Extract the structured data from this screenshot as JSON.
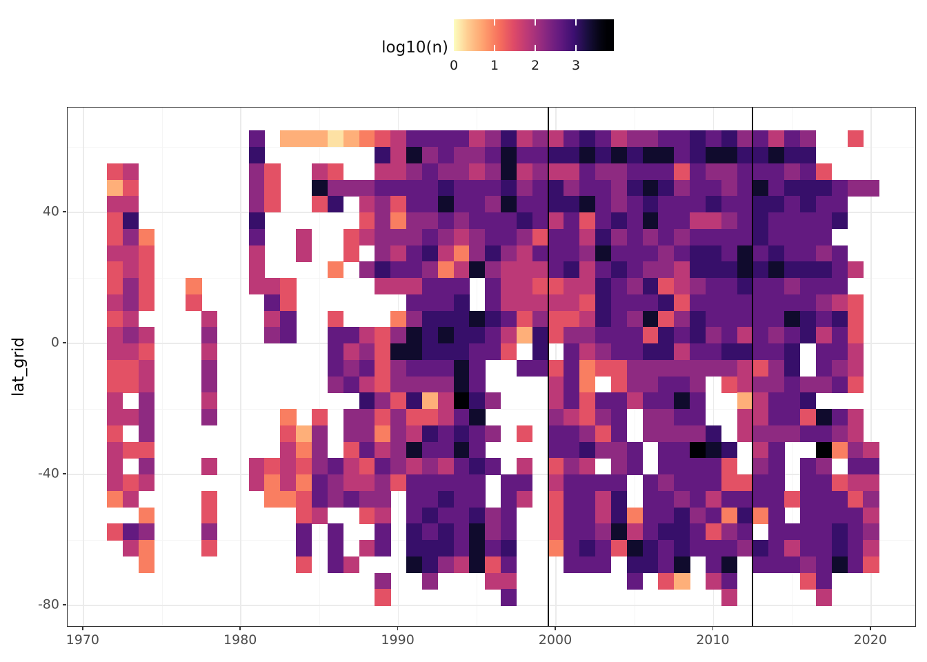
{
  "figure": {
    "background": "#ffffff"
  },
  "legend": {
    "title": "log10(n)",
    "tick_labels": [
      "0",
      "1",
      "2",
      "3"
    ],
    "tick_values": [
      0,
      1,
      2,
      3
    ],
    "bar_value_max": 3.93
  },
  "axes": {
    "y_title": "lat_grid",
    "x_title": "",
    "x_tick_labels": [
      "1970",
      "1980",
      "1990",
      "2000",
      "2010",
      "2020"
    ],
    "x_tick_values": [
      1970,
      1980,
      1990,
      2000,
      2010,
      2020
    ],
    "y_tick_labels": [
      "40",
      "0",
      "-40",
      "-80"
    ],
    "y_tick_values": [
      40,
      0,
      -40,
      -80
    ]
  },
  "chart_data": {
    "type": "heatmap",
    "title": "",
    "xlabel": "",
    "ylabel": "lat_grid",
    "fill_label": "log10(n)",
    "x_domain": [
      1969.0,
      2022.9
    ],
    "y_domain": [
      -86.7,
      72.0
    ],
    "x_ticks": [
      1970,
      1980,
      1990,
      2000,
      2010,
      2020
    ],
    "x_minor": [
      1975,
      1985,
      1995,
      2005,
      2015
    ],
    "y_ticks": [
      40,
      0,
      -40,
      -80
    ],
    "y_minor": [
      60,
      20,
      -20,
      -60
    ],
    "grid_on": true,
    "legend_position": "top",
    "colormap": "magma reversed (viridis option magma, direction = -1)",
    "magma_stops": [
      "#000004",
      "#140E36",
      "#3B0F70",
      "#641A80",
      "#8C2981",
      "#B73779",
      "#DE4968",
      "#F7705C",
      "#FE9F6D",
      "#FEC98D",
      "#FCFDBF"
    ],
    "color_domain_max": 3.7,
    "fill_limits": [
      0,
      3.93
    ],
    "vlines": [
      1999.5,
      2012.5
    ],
    "grid": {
      "year_start": 1971,
      "lat_start": 62.5,
      "lat_step": -5,
      "cell_width_years": 1,
      "cell_height_degrees": 5,
      "value_encoding": "each char is one year-cell: digit d means log10(n) = 0.2 + 0.4*d, '.' means no data",
      "rows": [
        "..........6.1110123466664574546764556676756465..3.",
        "..........7.......7485655686677878788678877877....",
        ".34.......53..43..44565545845446556663655666563...",
        ".13.......53..855566667666756756657875665686777655",
        ".44.......53..37.4536686658667786567666766776766..",
        ".37.......7......3525565666764636768664456766667..",
        ".352......6..4..3455565456653664756565666676666...",
        ".443......4..4..3.546742575466658666567768676656..",
        ".343......4....2.57665248544467467655477787877764.",
        ".353..2...443.....444666.64433447657345667665666..",
        ".453..3....63.......6667.644444376667366666666543.",
        ".34....4...46..3...257778763533476583576666687673.",
        ".454...5...56..6643587877641735566637675646567463.",
        ".443...4.......645388777663.7.645667746677667.664.",
        ".334...5.......6563566686..663623355555554357.654.",
        ".334...5.......5643555586....462.355665.345565563.",
        ".4.5...4.........753714975...4636646686..14667....",
        ".445...5....2.3.553533468....54356.5566..44663864.",
        ".3.5........315.5525476765.3.66536.55557.45556654.",
        ".433........425.364586686....667556.66987.46..9254",
        ".4.5...4..4343564365454676.4.354.56.66663.56.65.66",
        ".434......424265445366666.66.46666.656663366.66344",
        ".24....3...22365655.66766.64.36647.665646666366635",
        "...2...3.....34..34.6766756..366472667562726.66664",
        ".365...5.....6.6..6.7676856..3665846776356.6666765",
        "..42...3.....6.6.46.7776867..267638767666576466764",
        "...2.........3.64...8754836...666.7768.68.66656863",
        "..................5..5...44.......6.31.46....36...",
        "..................3.......6.............4.....4..."
      ]
    }
  }
}
